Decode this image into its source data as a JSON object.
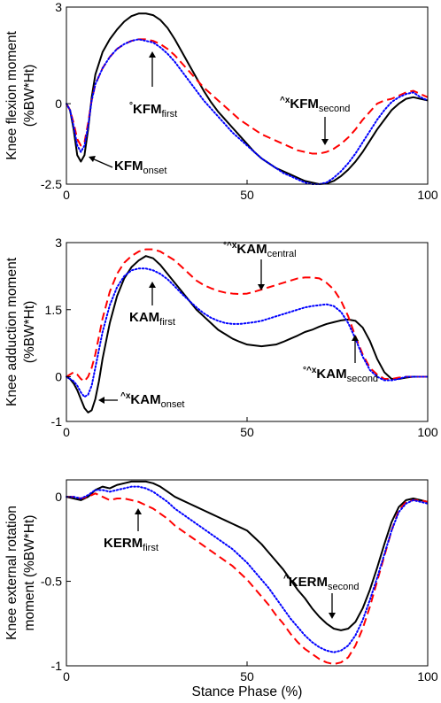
{
  "chart_data": [
    {
      "type": "line",
      "ylabel_line1": "Knee flexion moment",
      "ylabel_line2": "(%BW*Ht)",
      "xlim": [
        0,
        100
      ],
      "ylim": [
        -2.5,
        3
      ],
      "yticks": [
        "3",
        "0",
        "-2.5"
      ],
      "xticks": [
        "0",
        "50",
        "100"
      ],
      "series": [
        {
          "style": "solid",
          "color": "#000000",
          "x": [
            0,
            1,
            2,
            3,
            4,
            5,
            6,
            7,
            8,
            10,
            12,
            14,
            16,
            18,
            20,
            22,
            24,
            26,
            28,
            30,
            32,
            34,
            36,
            38,
            40,
            42,
            44,
            46,
            48,
            50,
            52,
            54,
            56,
            58,
            60,
            62,
            64,
            66,
            68,
            70,
            72,
            74,
            76,
            78,
            80,
            82,
            84,
            86,
            88,
            90,
            92,
            94,
            96,
            98,
            100
          ],
          "y": [
            0,
            -0.2,
            -0.8,
            -1.6,
            -1.8,
            -1.6,
            -0.8,
            0.2,
            0.9,
            1.6,
            2.0,
            2.3,
            2.55,
            2.72,
            2.8,
            2.8,
            2.75,
            2.6,
            2.35,
            2.0,
            1.6,
            1.2,
            0.8,
            0.4,
            0.05,
            -0.25,
            -0.5,
            -0.75,
            -1.0,
            -1.25,
            -1.5,
            -1.7,
            -1.85,
            -2.0,
            -2.1,
            -2.2,
            -2.3,
            -2.4,
            -2.45,
            -2.5,
            -2.48,
            -2.4,
            -2.25,
            -2.05,
            -1.8,
            -1.5,
            -1.15,
            -0.8,
            -0.5,
            -0.2,
            0.0,
            0.15,
            0.2,
            0.15,
            0.1
          ]
        },
        {
          "style": "dashed",
          "color": "#ff0000",
          "x": [
            0,
            1,
            2,
            3,
            4,
            5,
            6,
            7,
            8,
            10,
            12,
            14,
            16,
            18,
            20,
            22,
            24,
            26,
            28,
            30,
            32,
            34,
            36,
            38,
            40,
            42,
            44,
            46,
            48,
            50,
            52,
            54,
            56,
            58,
            60,
            62,
            64,
            66,
            68,
            70,
            72,
            74,
            76,
            78,
            80,
            82,
            84,
            86,
            88,
            90,
            92,
            94,
            96,
            98,
            100
          ],
          "y": [
            0,
            -0.2,
            -0.6,
            -1.1,
            -1.3,
            -1.2,
            -0.6,
            0.1,
            0.6,
            1.1,
            1.45,
            1.7,
            1.85,
            1.95,
            2.0,
            2.0,
            1.95,
            1.85,
            1.7,
            1.5,
            1.25,
            1.0,
            0.75,
            0.5,
            0.3,
            0.1,
            -0.1,
            -0.3,
            -0.5,
            -0.65,
            -0.8,
            -0.95,
            -1.05,
            -1.15,
            -1.25,
            -1.35,
            -1.45,
            -1.5,
            -1.55,
            -1.55,
            -1.5,
            -1.4,
            -1.25,
            -1.05,
            -0.8,
            -0.5,
            -0.25,
            0.0,
            0.1,
            0.15,
            0.25,
            0.35,
            0.4,
            0.3,
            0.2
          ]
        },
        {
          "style": "dotted",
          "color": "#0000ff",
          "x": [
            0,
            1,
            2,
            3,
            4,
            5,
            6,
            7,
            8,
            10,
            12,
            14,
            16,
            18,
            20,
            22,
            24,
            26,
            28,
            30,
            32,
            34,
            36,
            38,
            40,
            42,
            44,
            46,
            48,
            50,
            52,
            54,
            56,
            58,
            60,
            62,
            64,
            66,
            68,
            70,
            72,
            74,
            76,
            78,
            80,
            82,
            84,
            86,
            88,
            90,
            92,
            94,
            96,
            98,
            100
          ],
          "y": [
            0,
            -0.2,
            -0.7,
            -1.3,
            -1.5,
            -1.3,
            -0.7,
            0.1,
            0.6,
            1.1,
            1.45,
            1.7,
            1.85,
            1.95,
            2.0,
            1.95,
            1.9,
            1.75,
            1.55,
            1.3,
            1.0,
            0.7,
            0.4,
            0.1,
            -0.15,
            -0.4,
            -0.65,
            -0.9,
            -1.1,
            -1.3,
            -1.5,
            -1.7,
            -1.85,
            -2.0,
            -2.15,
            -2.25,
            -2.35,
            -2.45,
            -2.5,
            -2.5,
            -2.45,
            -2.3,
            -2.1,
            -1.85,
            -1.55,
            -1.2,
            -0.85,
            -0.5,
            -0.2,
            0.05,
            0.2,
            0.3,
            0.35,
            0.2,
            0.1
          ]
        }
      ],
      "annotations": [
        {
          "prefix": "°",
          "main": "KFM",
          "sub": "first"
        },
        {
          "prefix": "^x",
          "main": "KFM",
          "sub": "second"
        },
        {
          "prefix": "",
          "main": "KFM",
          "sub": "onset"
        }
      ]
    },
    {
      "type": "line",
      "ylabel_line1": "Knee adduction moment",
      "ylabel_line2": "(%BW*Ht)",
      "xlim": [
        0,
        100
      ],
      "ylim": [
        -1,
        3
      ],
      "yticks": [
        "3",
        "1.5",
        "0",
        "-1"
      ],
      "xticks": [
        "0",
        "50",
        "100"
      ],
      "series": [
        {
          "style": "solid",
          "color": "#000000",
          "x": [
            0,
            1,
            2,
            3,
            4,
            5,
            6,
            7,
            8,
            9,
            10,
            12,
            14,
            16,
            18,
            20,
            22,
            24,
            26,
            28,
            30,
            32,
            34,
            36,
            38,
            40,
            42,
            44,
            46,
            48,
            50,
            52,
            54,
            56,
            58,
            60,
            62,
            64,
            66,
            68,
            70,
            72,
            74,
            76,
            78,
            80,
            82,
            84,
            86,
            88,
            90,
            92,
            94,
            96,
            98,
            100
          ],
          "y": [
            0,
            -0.05,
            -0.15,
            -0.3,
            -0.5,
            -0.7,
            -0.8,
            -0.75,
            -0.5,
            -0.1,
            0.4,
            1.2,
            1.8,
            2.2,
            2.45,
            2.6,
            2.7,
            2.65,
            2.5,
            2.3,
            2.1,
            1.9,
            1.7,
            1.5,
            1.35,
            1.2,
            1.05,
            0.95,
            0.85,
            0.78,
            0.72,
            0.7,
            0.68,
            0.7,
            0.72,
            0.78,
            0.85,
            0.92,
            1.0,
            1.05,
            1.12,
            1.18,
            1.22,
            1.26,
            1.28,
            1.25,
            1.1,
            0.8,
            0.4,
            0.1,
            -0.05,
            -0.05,
            -0.02,
            0.0,
            0.0,
            0.0
          ]
        },
        {
          "style": "dashed",
          "color": "#ff0000",
          "x": [
            0,
            1,
            2,
            3,
            4,
            5,
            6,
            7,
            8,
            9,
            10,
            12,
            14,
            16,
            18,
            20,
            22,
            24,
            26,
            28,
            30,
            32,
            34,
            36,
            38,
            40,
            42,
            44,
            46,
            48,
            50,
            52,
            54,
            56,
            58,
            60,
            62,
            64,
            66,
            68,
            70,
            72,
            74,
            76,
            78,
            80,
            82,
            84,
            86,
            88,
            90,
            92,
            94,
            96,
            98,
            100
          ],
          "y": [
            0,
            0.05,
            0.1,
            0.05,
            -0.05,
            -0.1,
            0.0,
            0.2,
            0.5,
            0.9,
            1.3,
            1.9,
            2.3,
            2.55,
            2.7,
            2.8,
            2.85,
            2.85,
            2.8,
            2.7,
            2.6,
            2.45,
            2.3,
            2.15,
            2.05,
            1.98,
            1.92,
            1.88,
            1.86,
            1.85,
            1.86,
            1.9,
            1.95,
            2.0,
            2.05,
            2.1,
            2.15,
            2.2,
            2.22,
            2.22,
            2.2,
            2.1,
            1.95,
            1.7,
            1.35,
            0.9,
            0.5,
            0.2,
            0.05,
            -0.05,
            -0.05,
            -0.02,
            0.0,
            0.0,
            0.0,
            0.0
          ]
        },
        {
          "style": "dotted",
          "color": "#0000ff",
          "x": [
            0,
            1,
            2,
            3,
            4,
            5,
            6,
            7,
            8,
            9,
            10,
            12,
            14,
            16,
            18,
            20,
            22,
            24,
            26,
            28,
            30,
            32,
            34,
            36,
            38,
            40,
            42,
            44,
            46,
            48,
            50,
            52,
            54,
            56,
            58,
            60,
            62,
            64,
            66,
            68,
            70,
            72,
            74,
            76,
            78,
            80,
            82,
            84,
            86,
            88,
            90,
            92,
            94,
            96,
            98,
            100
          ],
          "y": [
            0,
            -0.05,
            -0.1,
            -0.2,
            -0.35,
            -0.45,
            -0.4,
            -0.2,
            0.2,
            0.6,
            1.0,
            1.6,
            2.0,
            2.25,
            2.38,
            2.42,
            2.42,
            2.38,
            2.3,
            2.18,
            2.02,
            1.85,
            1.7,
            1.55,
            1.42,
            1.32,
            1.25,
            1.2,
            1.18,
            1.18,
            1.2,
            1.22,
            1.25,
            1.3,
            1.35,
            1.4,
            1.45,
            1.5,
            1.55,
            1.58,
            1.6,
            1.62,
            1.58,
            1.45,
            1.2,
            0.85,
            0.45,
            0.15,
            0.0,
            -0.08,
            -0.08,
            -0.05,
            0.0,
            0.0,
            0.0,
            0.0
          ]
        }
      ],
      "annotations": [
        {
          "prefix": "°^x",
          "main": "KAM",
          "sub": "central"
        },
        {
          "prefix": "",
          "main": "KAM",
          "sub": "first"
        },
        {
          "prefix": "°^x",
          "main": "KAM",
          "sub": "second"
        },
        {
          "prefix": "^x",
          "main": "KAM",
          "sub": "onset"
        }
      ]
    },
    {
      "type": "line",
      "ylabel_line1": "Knee external rotation",
      "ylabel_line2": "moment (%BW*Ht)",
      "xlabel": "Stance Phase (%)",
      "xlim": [
        0,
        100
      ],
      "ylim": [
        -1,
        0.1
      ],
      "yticks": [
        "0",
        "-0.5",
        "-1"
      ],
      "xticks": [
        "0",
        "50",
        "100"
      ],
      "series": [
        {
          "style": "solid",
          "color": "#000000",
          "x": [
            0,
            2,
            4,
            6,
            8,
            10,
            12,
            14,
            16,
            18,
            20,
            22,
            24,
            26,
            28,
            30,
            32,
            34,
            36,
            38,
            40,
            42,
            44,
            46,
            48,
            50,
            52,
            54,
            56,
            58,
            60,
            62,
            64,
            66,
            68,
            70,
            72,
            74,
            76,
            78,
            80,
            82,
            84,
            86,
            88,
            90,
            92,
            94,
            96,
            98,
            100
          ],
          "y": [
            0,
            -0.01,
            -0.02,
            0.0,
            0.04,
            0.06,
            0.05,
            0.07,
            0.08,
            0.09,
            0.09,
            0.09,
            0.08,
            0.06,
            0.03,
            0.0,
            -0.02,
            -0.04,
            -0.06,
            -0.08,
            -0.1,
            -0.12,
            -0.14,
            -0.16,
            -0.18,
            -0.2,
            -0.24,
            -0.28,
            -0.33,
            -0.38,
            -0.43,
            -0.49,
            -0.55,
            -0.6,
            -0.66,
            -0.71,
            -0.75,
            -0.78,
            -0.79,
            -0.78,
            -0.74,
            -0.66,
            -0.55,
            -0.42,
            -0.28,
            -0.15,
            -0.06,
            -0.02,
            -0.01,
            -0.02,
            -0.03
          ]
        },
        {
          "style": "dashed",
          "color": "#ff0000",
          "x": [
            0,
            2,
            4,
            6,
            8,
            10,
            12,
            14,
            16,
            18,
            20,
            22,
            24,
            26,
            28,
            30,
            32,
            34,
            36,
            38,
            40,
            42,
            44,
            46,
            48,
            50,
            52,
            54,
            56,
            58,
            60,
            62,
            64,
            66,
            68,
            70,
            72,
            74,
            76,
            78,
            80,
            82,
            84,
            86,
            88,
            90,
            92,
            94,
            96,
            98,
            100
          ],
          "y": [
            0,
            0.0,
            -0.01,
            0.0,
            0.02,
            0.0,
            -0.02,
            -0.01,
            -0.01,
            -0.02,
            -0.03,
            -0.05,
            -0.07,
            -0.1,
            -0.13,
            -0.17,
            -0.2,
            -0.23,
            -0.26,
            -0.29,
            -0.32,
            -0.35,
            -0.38,
            -0.41,
            -0.45,
            -0.49,
            -0.54,
            -0.59,
            -0.64,
            -0.7,
            -0.75,
            -0.81,
            -0.86,
            -0.9,
            -0.93,
            -0.96,
            -0.98,
            -0.99,
            -0.98,
            -0.95,
            -0.88,
            -0.78,
            -0.65,
            -0.5,
            -0.35,
            -0.2,
            -0.08,
            -0.03,
            -0.02,
            -0.02,
            -0.03
          ]
        },
        {
          "style": "dotted",
          "color": "#0000ff",
          "x": [
            0,
            2,
            4,
            6,
            8,
            10,
            12,
            14,
            16,
            18,
            20,
            22,
            24,
            26,
            28,
            30,
            32,
            34,
            36,
            38,
            40,
            42,
            44,
            46,
            48,
            50,
            52,
            54,
            56,
            58,
            60,
            62,
            64,
            66,
            68,
            70,
            72,
            74,
            76,
            78,
            80,
            82,
            84,
            86,
            88,
            90,
            92,
            94,
            96,
            98,
            100
          ],
          "y": [
            0,
            0.0,
            -0.01,
            0.01,
            0.04,
            0.04,
            0.03,
            0.04,
            0.05,
            0.06,
            0.06,
            0.05,
            0.03,
            0.0,
            -0.03,
            -0.07,
            -0.1,
            -0.13,
            -0.16,
            -0.19,
            -0.22,
            -0.25,
            -0.28,
            -0.31,
            -0.35,
            -0.39,
            -0.44,
            -0.49,
            -0.54,
            -0.6,
            -0.66,
            -0.72,
            -0.77,
            -0.82,
            -0.86,
            -0.89,
            -0.91,
            -0.92,
            -0.91,
            -0.88,
            -0.82,
            -0.73,
            -0.61,
            -0.48,
            -0.34,
            -0.2,
            -0.09,
            -0.04,
            -0.02,
            -0.03,
            -0.04
          ]
        }
      ],
      "annotations": [
        {
          "prefix": "",
          "main": "KERM",
          "sub": "first"
        },
        {
          "prefix": "^",
          "main": "KERM",
          "sub": "second"
        }
      ]
    }
  ]
}
